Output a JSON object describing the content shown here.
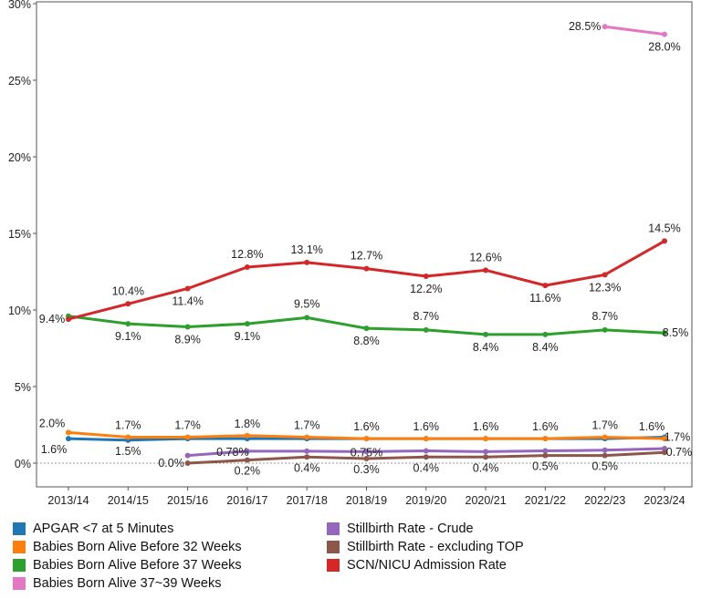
{
  "chart_data": {
    "type": "line",
    "categories": [
      "2013/14",
      "2014/15",
      "2015/16",
      "2016/17",
      "2017/18",
      "2018/19",
      "2019/20",
      "2020/21",
      "2021/22",
      "2022/23",
      "2023/24"
    ],
    "ylim": [
      -1.5,
      30
    ],
    "yticks": [
      "0%",
      "5%",
      "10%",
      "15%",
      "20%",
      "25%",
      "30%"
    ],
    "ytick_values": [
      0,
      5,
      10,
      15,
      20,
      25,
      30
    ],
    "grid": false,
    "legend_position": "bottom",
    "series": [
      {
        "name": "APGAR <7 at 5 Minutes",
        "color": "#1f77b4",
        "values": [
          1.6,
          1.5,
          1.6,
          1.6,
          1.6,
          1.6,
          1.6,
          1.6,
          1.6,
          1.6,
          1.7
        ],
        "labels": [
          "1.6%",
          "1.5%",
          "",
          "",
          "",
          "",
          "",
          "",
          "",
          "",
          "1.7%"
        ]
      },
      {
        "name": "Babies Born Alive Before 32 Weeks",
        "color": "#ff7f0e",
        "values": [
          2.0,
          1.7,
          1.7,
          1.8,
          1.7,
          1.6,
          1.6,
          1.6,
          1.6,
          1.7,
          1.6
        ],
        "labels": [
          "2.0%",
          "1.7%",
          "1.7%",
          "1.8%",
          "1.7%",
          "1.6%",
          "1.6%",
          "1.6%",
          "1.6%",
          "1.7%",
          "1.6%"
        ]
      },
      {
        "name": "Babies Born Alive Before 37 Weeks",
        "color": "#2ca02c",
        "values": [
          9.6,
          9.1,
          8.9,
          9.1,
          9.5,
          8.8,
          8.7,
          8.4,
          8.4,
          8.7,
          8.5
        ],
        "labels": [
          "",
          "9.1%",
          "8.9%",
          "9.1%",
          "9.5%",
          "8.8%",
          "8.7%",
          "8.4%",
          "8.4%",
          "8.7%",
          "8.5%"
        ]
      },
      {
        "name": "Babies Born Alive 37~39 Weeks",
        "color": "#e377c2",
        "values": [
          null,
          null,
          null,
          null,
          null,
          null,
          null,
          null,
          null,
          28.5,
          28.0
        ],
        "labels": [
          "",
          "",
          "",
          "",
          "",
          "",
          "",
          "",
          "",
          "28.5%",
          "28.0%"
        ]
      },
      {
        "name": "Stillbirth Rate - Crude",
        "color": "#9467bd",
        "values": [
          null,
          null,
          0.5,
          0.78,
          0.78,
          0.75,
          0.8,
          0.75,
          0.8,
          0.85,
          0.95
        ],
        "labels": [
          "",
          "",
          "",
          "0.78%",
          "",
          "0.75%",
          "",
          "",
          "",
          "",
          ""
        ]
      },
      {
        "name": "Stillbirth Rate - excluding TOP",
        "color": "#8c564b",
        "values": [
          null,
          null,
          0.0,
          0.2,
          0.4,
          0.3,
          0.4,
          0.4,
          0.5,
          0.5,
          0.7
        ],
        "labels": [
          "",
          "",
          "0.0%",
          "0.2%",
          "0.4%",
          "0.3%",
          "0.4%",
          "0.4%",
          "0.5%",
          "0.5%",
          "0.7%"
        ]
      },
      {
        "name": "SCN/NICU Admission Rate",
        "color": "#d62728",
        "values": [
          9.4,
          10.4,
          11.4,
          12.8,
          13.1,
          12.7,
          12.2,
          12.6,
          11.6,
          12.3,
          14.5
        ],
        "labels": [
          "9.4%",
          "10.4%",
          "11.4%",
          "12.8%",
          "13.1%",
          "12.7%",
          "12.2%",
          "12.6%",
          "11.6%",
          "12.3%",
          "14.5%"
        ]
      }
    ]
  }
}
